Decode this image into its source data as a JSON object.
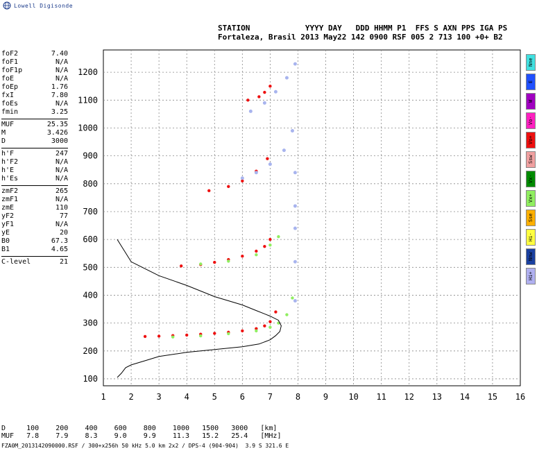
{
  "logo": {
    "text": "Lowell Digisonde"
  },
  "header": {
    "line1": "STATION            YYYY DAY   DDD HHMM P1  FFS S AXN PPS IGA PS",
    "line2": "Fortaleza, Brasil 2013 May22 142 0900 RSF 005 2 713 100 +0+ B2"
  },
  "params": [
    [
      [
        "foF2",
        "7.40"
      ],
      [
        "foF1",
        "N/A"
      ],
      [
        "foF1p",
        "N/A"
      ],
      [
        "foE",
        "N/A"
      ],
      [
        "foEp",
        "1.76"
      ],
      [
        "fxI",
        "7.80"
      ],
      [
        "foEs",
        "N/A"
      ],
      [
        "fmin",
        "3.25"
      ]
    ],
    [
      [
        "MUF",
        "25.35"
      ],
      [
        "M",
        "3.426"
      ],
      [
        "D",
        "3000"
      ]
    ],
    [
      [
        "h'F",
        "247"
      ],
      [
        "h'F2",
        "N/A"
      ],
      [
        "h'E",
        "N/A"
      ],
      [
        "h'Es",
        "N/A"
      ]
    ],
    [
      [
        "zmF2",
        "265"
      ],
      [
        "zmF1",
        "N/A"
      ],
      [
        "zmE",
        "110"
      ],
      [
        "yF2",
        "77"
      ],
      [
        "yF1",
        "N/A"
      ],
      [
        "yE",
        "20"
      ],
      [
        "B0",
        "67.3"
      ],
      [
        "B1",
        "4.65"
      ]
    ],
    [
      [
        "C-level",
        "21"
      ]
    ]
  ],
  "legend": [
    {
      "label": "Nne",
      "color": "#40e0e0"
    },
    {
      "label": "E",
      "color": "#2050ff"
    },
    {
      "label": "W",
      "color": "#a000c0"
    },
    {
      "label": "Vo-",
      "color": "#ff20c0"
    },
    {
      "label": "Vo+",
      "color": "#ee1010"
    },
    {
      "label": "Ssw",
      "color": "#f0a0a0"
    },
    {
      "label": "Vx-",
      "color": "#008a00"
    },
    {
      "label": "Vx+",
      "color": "#90ee60"
    },
    {
      "label": "Sse",
      "color": "#ffb000"
    },
    {
      "label": "Hi-",
      "color": "#ffff40"
    },
    {
      "label": "Nnw",
      "color": "#1a40a0"
    },
    {
      "label": "Hi+",
      "color": "#b0b0f0"
    }
  ],
  "muf_table": {
    "d_label": "D",
    "muf_label": "MUF",
    "d": [
      "100",
      "200",
      "400",
      "600",
      "800",
      "1000",
      "1500",
      "3000"
    ],
    "muf": [
      "7.8",
      "7.9",
      "8.3",
      "9.0",
      "9.9",
      "11.3",
      "15.2",
      "25.4"
    ],
    "d_unit": "[km]",
    "muf_unit": "[MHz]"
  },
  "footer": {
    "text": "FZA0M_2013142090000.RSF / 300+x256h 50 kHz 5.0 km 2x2 / DPS-4 (904-904)  3.9 S 321.6 E"
  },
  "chart_data": {
    "type": "scatter",
    "title": "",
    "xlabel": "",
    "ylabel": "",
    "xlim": [
      1,
      16
    ],
    "ylim": [
      75,
      1280
    ],
    "x_ticks": [
      1,
      2,
      3,
      4,
      5,
      6,
      7,
      8,
      9,
      10,
      11,
      12,
      13,
      14,
      15,
      16
    ],
    "y_ticks": [
      100,
      200,
      300,
      400,
      500,
      600,
      700,
      800,
      900,
      1000,
      1100,
      1200
    ],
    "grid": true,
    "colors": {
      "o_mode": "#ee1010",
      "x_mode": "#90ee60",
      "echo": "#a8b4ee",
      "profile": "#000000"
    },
    "series": [
      {
        "kind": "o_trace",
        "x": [
          2.5,
          3.0,
          3.5,
          4.0,
          4.5,
          5.0,
          5.5,
          6.0,
          6.5,
          6.8,
          7.0,
          7.2
        ],
        "y": [
          252,
          253,
          255,
          257,
          260,
          263,
          267,
          272,
          280,
          290,
          305,
          340
        ]
      },
      {
        "kind": "x_trace",
        "x": [
          3.5,
          4.5,
          5.5,
          6.5,
          7.0,
          7.3,
          7.6,
          7.8
        ],
        "y": [
          250,
          254,
          262,
          272,
          285,
          300,
          330,
          390
        ]
      },
      {
        "kind": "o_trace_2hop",
        "x": [
          3.8,
          4.5,
          5.0,
          5.5,
          6.0,
          6.5,
          6.8,
          7.0
        ],
        "y": [
          505,
          510,
          518,
          528,
          540,
          558,
          575,
          600
        ]
      },
      {
        "kind": "x_trace_2hop",
        "x": [
          4.5,
          5.5,
          6.5,
          7.0,
          7.3
        ],
        "y": [
          512,
          522,
          545,
          580,
          610
        ]
      },
      {
        "kind": "o_trace_3hop",
        "x": [
          4.8,
          5.5,
          6.0,
          6.5,
          6.9
        ],
        "y": [
          775,
          790,
          810,
          845,
          890
        ]
      },
      {
        "kind": "o_trace_4hop",
        "x": [
          6.2,
          6.6,
          6.8,
          7.0
        ],
        "y": [
          1100,
          1112,
          1128,
          1150
        ]
      },
      {
        "kind": "echo_spread_x2",
        "x": [
          6.0,
          6.5,
          7.0,
          7.5,
          7.8
        ],
        "y": [
          820,
          840,
          870,
          920,
          990
        ]
      },
      {
        "kind": "echo_spread_x4",
        "x": [
          6.3,
          6.8,
          7.2,
          7.6,
          7.9
        ],
        "y": [
          1060,
          1090,
          1130,
          1180,
          1230
        ]
      },
      {
        "kind": "echo_vertical",
        "x": [
          7.9,
          7.9,
          7.9,
          7.9,
          7.9
        ],
        "y": [
          380,
          520,
          640,
          720,
          840
        ]
      },
      {
        "kind": "profile",
        "x": [
          1.5,
          1.65,
          1.8,
          2.0,
          2.5,
          3.0,
          4.0,
          5.0,
          6.0,
          6.6,
          7.0,
          7.2,
          7.35,
          7.4,
          7.3,
          7.0,
          6.5,
          6.0,
          5.0,
          4.0,
          3.0,
          2.0,
          1.5
        ],
        "y": [
          105,
          120,
          140,
          150,
          165,
          180,
          195,
          205,
          215,
          225,
          240,
          255,
          270,
          290,
          310,
          325,
          345,
          365,
          395,
          435,
          470,
          520,
          600
        ]
      }
    ]
  }
}
